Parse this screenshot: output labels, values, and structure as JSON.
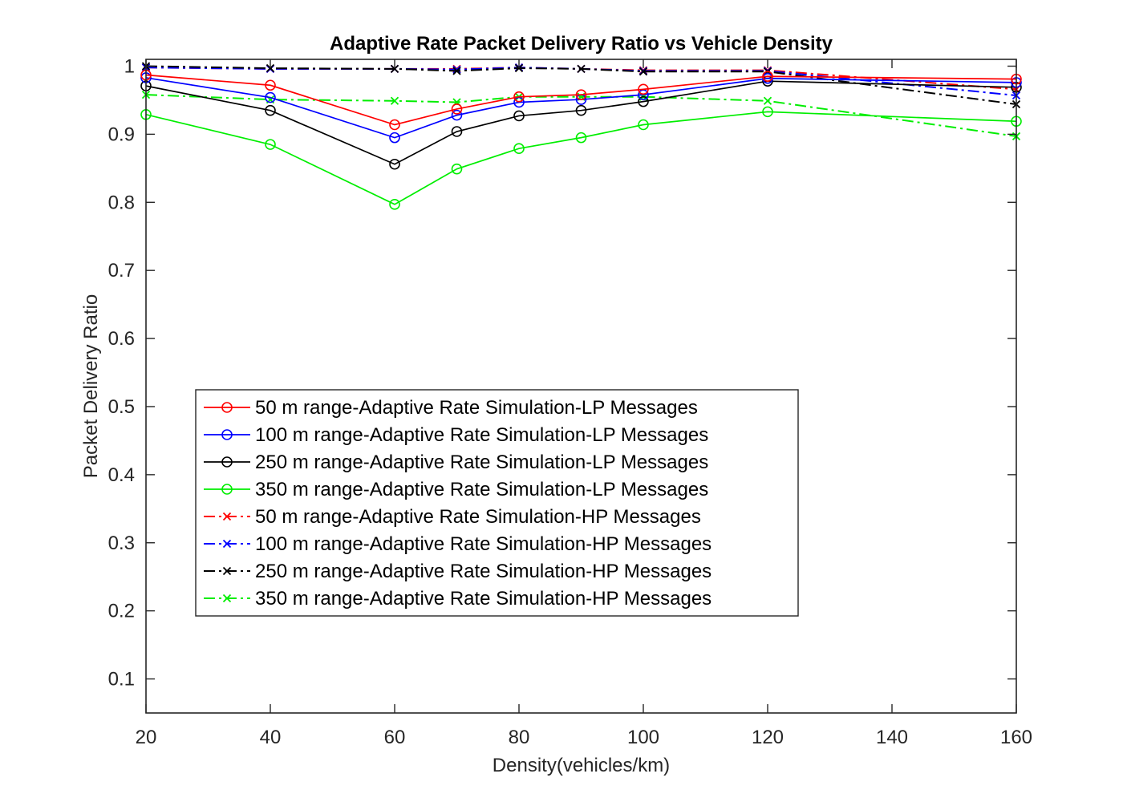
{
  "chart_data": {
    "type": "line",
    "title": "Adaptive Rate Packet Delivery Ratio vs Vehicle Density",
    "xlabel": "Density(vehicles/km)",
    "ylabel": "Packet Delivery Ratio",
    "xlim": [
      20,
      160
    ],
    "ylim": [
      0.05,
      1.01
    ],
    "x_ticks": [
      20,
      40,
      60,
      80,
      100,
      120,
      140,
      160
    ],
    "y_ticks": [
      0.1,
      0.2,
      0.3,
      0.4,
      0.5,
      0.6,
      0.7,
      0.8,
      0.9,
      1
    ],
    "x_tick_labels": [
      "20",
      "40",
      "60",
      "80",
      "100",
      "120",
      "140",
      "160"
    ],
    "y_tick_labels": [
      "0.1",
      "0.2",
      "0.3",
      "0.4",
      "0.5",
      "0.6",
      "0.7",
      "0.8",
      "0.9",
      "1"
    ],
    "grid": false,
    "legend_position": "lower-left",
    "x": [
      20,
      40,
      60,
      70,
      80,
      90,
      100,
      120,
      160
    ],
    "series": [
      {
        "name": "50 m range-Adaptive Rate Simulation-LP Messages",
        "color": "#ff0000",
        "line": "solid",
        "marker": "circle",
        "values": [
          0.987,
          0.972,
          0.914,
          0.937,
          0.955,
          0.958,
          0.966,
          0.985,
          0.981
        ]
      },
      {
        "name": "100 m range-Adaptive Rate Simulation-LP Messages",
        "color": "#0000ff",
        "line": "solid",
        "marker": "circle",
        "values": [
          0.983,
          0.954,
          0.895,
          0.928,
          0.947,
          0.951,
          0.958,
          0.982,
          0.976
        ]
      },
      {
        "name": "250 m range-Adaptive Rate Simulation-LP Messages",
        "color": "#000000",
        "line": "solid",
        "marker": "circle",
        "values": [
          0.971,
          0.935,
          0.856,
          0.904,
          0.927,
          0.935,
          0.948,
          0.978,
          0.969
        ]
      },
      {
        "name": "350 m range-Adaptive Rate Simulation-LP Messages",
        "color": "#00ee00",
        "line": "solid",
        "marker": "circle",
        "values": [
          0.929,
          0.885,
          0.797,
          0.849,
          0.879,
          0.895,
          0.914,
          0.933,
          0.919
        ]
      },
      {
        "name": "50 m range-Adaptive Rate Simulation-HP Messages",
        "color": "#ff0000",
        "line": "dashdot",
        "marker": "x",
        "values": [
          0.998,
          0.996,
          0.996,
          0.996,
          0.998,
          0.996,
          0.994,
          0.994,
          0.966
        ]
      },
      {
        "name": "100 m range-Adaptive Rate Simulation-HP Messages",
        "color": "#0000ff",
        "line": "dashdot",
        "marker": "x",
        "values": [
          0.998,
          0.996,
          0.996,
          0.995,
          0.998,
          0.996,
          0.993,
          0.993,
          0.957
        ]
      },
      {
        "name": "250 m range-Adaptive Rate Simulation-HP Messages",
        "color": "#000000",
        "line": "dashdot",
        "marker": "x",
        "values": [
          1.0,
          0.997,
          0.996,
          0.993,
          0.997,
          0.996,
          0.992,
          0.992,
          0.944
        ]
      },
      {
        "name": "350 m range-Adaptive Rate Simulation-HP Messages",
        "color": "#00ee00",
        "line": "dashdot",
        "marker": "x",
        "values": [
          0.958,
          0.951,
          0.949,
          0.947,
          0.955,
          0.955,
          0.955,
          0.949,
          0.897
        ]
      }
    ]
  }
}
